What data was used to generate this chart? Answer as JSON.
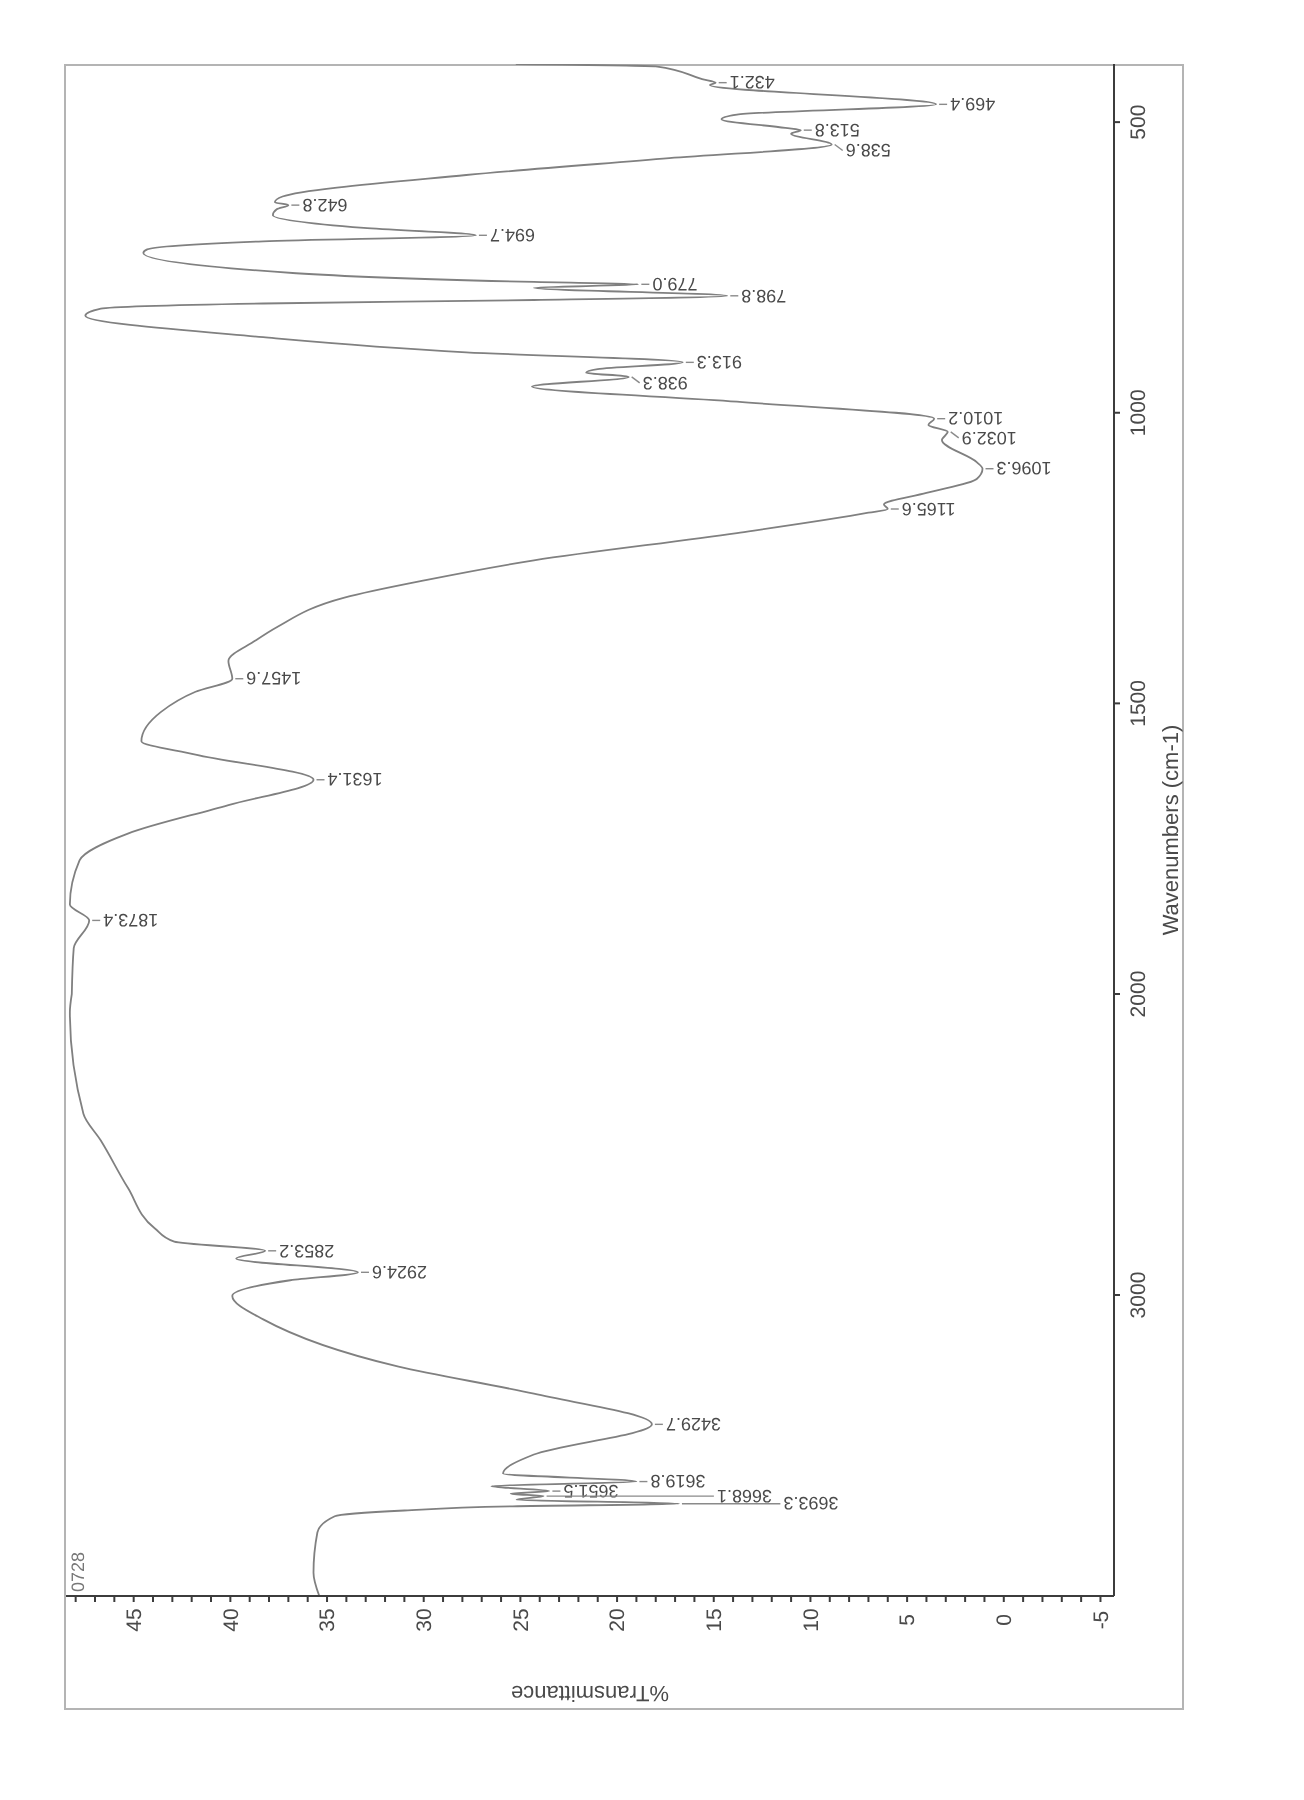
{
  "chart_data": [
    {
      "type": "line",
      "ylabel": "Wavenumbers (cm-1)",
      "ylim": [
        2000,
        400
      ],
      "yticks": [
        500,
        1000,
        1500
      ],
      "xlim": [
        48.5,
        -5.7
      ],
      "tick_labels": "y",
      "color": "#808080",
      "x": [
        25.2,
        18.0,
        15.6,
        14.9,
        15.2,
        3.5,
        13.8,
        14.6,
        11.3,
        10.5,
        11.0,
        8.9,
        17.3,
        27.8,
        37.3,
        37.7,
        37.0,
        37.6,
        37.8,
        33.1,
        27.3,
        38.3,
        44.3,
        44.5,
        36.6,
        24.3,
        18.9,
        24.3,
        14.3,
        24.3,
        38.3,
        46.7,
        47.5,
        38.3,
        27.8,
        16.6,
        21.0,
        21.6,
        19.4,
        24.4,
        13.8,
        3.6,
        3.9,
        2.9,
        3.2,
        1.4,
        1.1,
        1.4,
        4.0,
        6.2,
        6.0,
        7.0,
        13.8,
        24.3,
        29.9,
        34.1,
        37.6,
        38.7,
        40.1,
        39.9,
        41.8,
        43.6,
        44.6,
        41.8,
        35.7,
        40.1,
        45.3,
        47.8,
        48.3,
        47.3,
        48.1,
        48.2
      ],
      "values": [
        400,
        404,
        426,
        432.1,
        436,
        469.4,
        487,
        495,
        510,
        513.8,
        520,
        538.6,
        562,
        591,
        628,
        638,
        642.8,
        650,
        660,
        682,
        694.7,
        705,
        719,
        725,
        760,
        775,
        779.0,
        785,
        798.8,
        806,
        812,
        821,
        833,
        870,
        896,
        913.3,
        925,
        931,
        938.3,
        955,
        981,
        1010.2,
        1021,
        1032.9,
        1047,
        1085,
        1096.3,
        1114,
        1138,
        1158,
        1165.6,
        1172,
        1207,
        1254,
        1288,
        1318,
        1369,
        1392,
        1427,
        1457.6,
        1480,
        1515,
        1565,
        1588,
        1631.4,
        1675,
        1724,
        1770,
        1846,
        1873.4,
        1921,
        2000
      ],
      "annotations": [
        {
          "text": "432.1",
          "x": 14.9,
          "y": 432.1
        },
        {
          "text": "469.4",
          "x": 3.5,
          "y": 469.4
        },
        {
          "text": "513.8",
          "x": 10.5,
          "y": 513.8
        },
        {
          "text": "538.6",
          "x": 8.9,
          "y": 538.6
        },
        {
          "text": "642.8",
          "x": 37.0,
          "y": 642.8
        },
        {
          "text": "694.7",
          "x": 27.3,
          "y": 694.7
        },
        {
          "text": "779.0",
          "x": 18.9,
          "y": 779.0
        },
        {
          "text": "798.8",
          "x": 14.3,
          "y": 798.8
        },
        {
          "text": "913.3",
          "x": 16.6,
          "y": 913.3
        },
        {
          "text": "938.3",
          "x": 19.4,
          "y": 938.3
        },
        {
          "text": "1010.2",
          "x": 3.6,
          "y": 1010.2
        },
        {
          "text": "1032.9",
          "x": 2.9,
          "y": 1032.9
        },
        {
          "text": "1096.3",
          "x": 1.1,
          "y": 1096.3
        },
        {
          "text": "1165.6",
          "x": 6.0,
          "y": 1165.6
        },
        {
          "text": "1457.6",
          "x": 39.9,
          "y": 1457.6
        },
        {
          "text": "1631.4",
          "x": 35.7,
          "y": 1631.4
        },
        {
          "text": "1873.4",
          "x": 47.3,
          "y": 1873.4
        }
      ]
    },
    {
      "type": "line",
      "xlabel": "%Transmittance",
      "ylim": [
        4000,
        2000
      ],
      "yticks": [
        2000,
        3000
      ],
      "xlim": [
        48.5,
        -5.7
      ],
      "xticks": [
        {
          "value": 48,
          "label": null
        },
        {
          "value": 47,
          "label": null
        },
        {
          "value": 46,
          "label": null
        },
        45,
        {
          "value": 44,
          "label": null
        },
        {
          "value": 43,
          "label": null
        },
        {
          "value": 42,
          "label": null
        },
        {
          "value": 41,
          "label": null
        },
        40,
        {
          "value": 39,
          "label": null
        },
        {
          "value": 38,
          "label": null
        },
        {
          "value": 37,
          "label": null
        },
        {
          "value": 36,
          "label": null
        },
        35,
        {
          "value": 34,
          "label": null
        },
        {
          "value": 33,
          "label": null
        },
        {
          "value": 32,
          "label": null
        },
        {
          "value": 31,
          "label": null
        },
        30,
        {
          "value": 29,
          "label": null
        },
        {
          "value": 28,
          "label": null
        },
        {
          "value": 27,
          "label": null
        },
        {
          "value": 26,
          "label": null
        },
        25,
        {
          "value": 24,
          "label": null
        },
        {
          "value": 23,
          "label": null
        },
        {
          "value": 22,
          "label": null
        },
        {
          "value": 21,
          "label": null
        },
        20,
        {
          "value": 19,
          "label": null
        },
        {
          "value": 18,
          "label": null
        },
        {
          "value": 17,
          "label": null
        },
        {
          "value": 16,
          "label": null
        },
        15,
        {
          "value": 14,
          "label": null
        },
        {
          "value": 13,
          "label": null
        },
        {
          "value": 12,
          "label": null
        },
        {
          "value": 11,
          "label": null
        },
        10,
        {
          "value": 9,
          "label": null
        },
        {
          "value": 8,
          "label": null
        },
        {
          "value": 7,
          "label": null
        },
        {
          "value": 6,
          "label": null
        },
        5,
        {
          "value": 4,
          "label": null
        },
        {
          "value": 3,
          "label": null
        },
        {
          "value": 2,
          "label": null
        },
        {
          "value": 1,
          "label": null
        },
        0,
        {
          "value": -1,
          "label": null
        },
        {
          "value": -2,
          "label": null
        },
        {
          "value": -3,
          "label": null
        },
        {
          "value": -4,
          "label": null
        },
        -5
      ],
      "color": "#808080",
      "x": [
        48.2,
        48.3,
        47.6,
        46.7,
        45.3,
        43.9,
        42.9,
        38.2,
        39.7,
        33.4,
        36.9,
        39.9,
        38.3,
        31.3,
        24.3,
        18.2,
        24.3,
        25.9,
        19.0,
        26.5,
        23.5,
        25.5,
        23.8,
        25.2,
        16.8,
        25.4,
        31.0,
        34.6,
        35.5,
        35.7,
        35.4
      ],
      "values": [
        2000,
        2061,
        2398,
        2487,
        2644,
        2779,
        2823,
        2853.2,
        2879,
        2924.6,
        2951,
        3003,
        3081,
        3238,
        3328,
        3429.7,
        3530,
        3593,
        3619.8,
        3635,
        3651.5,
        3660,
        3668.1,
        3680,
        3693.3,
        3702,
        3716,
        3735,
        3789,
        3923,
        4000
      ],
      "annotations": [
        "0728",
        {
          "text": "2853.2",
          "x": 38.2,
          "y": 2853.2
        },
        {
          "text": "2924.6",
          "x": 33.4,
          "y": 2924.6
        },
        {
          "text": "3429.7",
          "x": 18.2,
          "y": 3429.7
        },
        {
          "text": "3619.8",
          "x": 19.0,
          "y": 3619.8
        },
        {
          "text": "3651.5",
          "x": 23.5,
          "y": 3651.5
        },
        {
          "text": "3668.1",
          "x": 23.8,
          "y": 3668.1
        },
        {
          "text": "3693.3",
          "x": 16.8,
          "y": 3693.3
        }
      ]
    }
  ]
}
